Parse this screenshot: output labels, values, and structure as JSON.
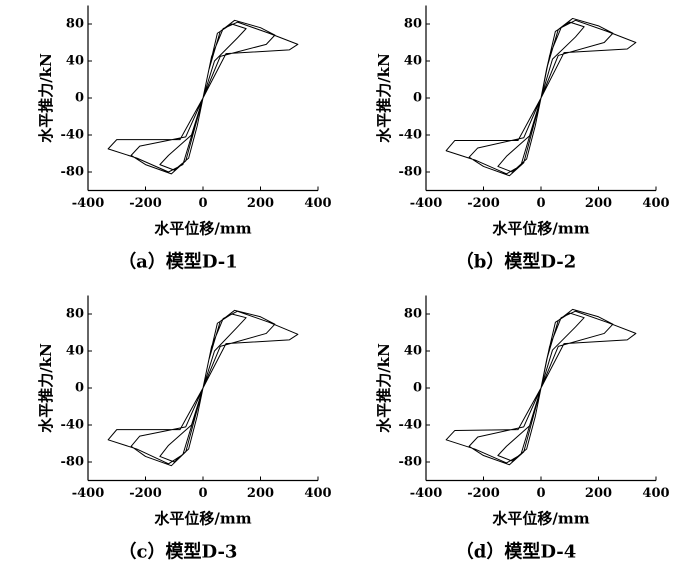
{
  "chart_data": [
    {
      "type": "line",
      "caption": "（a）模型D-1",
      "xlabel": "水平位移/mm",
      "ylabel": "水平推力/kN",
      "color": "#000000",
      "xlim": [
        -400,
        400
      ],
      "ylim": [
        -100,
        100
      ],
      "xticks": [
        -400,
        -200,
        0,
        200,
        400
      ],
      "yticks": [
        -80,
        -40,
        0,
        40,
        80
      ],
      "x": [
        0,
        20,
        50,
        100,
        150,
        120,
        40,
        0,
        -20,
        -50,
        -100,
        -150,
        -120,
        -40,
        0,
        20,
        60,
        110,
        200,
        250,
        220,
        60,
        0,
        -60,
        -110,
        -200,
        -250,
        -220,
        -60,
        0,
        30,
        70,
        120,
        230,
        330,
        300,
        80,
        0,
        -70,
        -120,
        -230,
        -330,
        -300,
        -80,
        0
      ],
      "values": [
        0,
        30,
        70,
        80,
        75,
        65,
        40,
        0,
        -30,
        -65,
        -78,
        -72,
        -62,
        -40,
        0,
        30,
        72,
        84,
        76,
        68,
        58,
        45,
        0,
        -68,
        -82,
        -72,
        -62,
        -52,
        -42,
        0,
        45,
        75,
        82,
        70,
        58,
        52,
        48,
        0,
        -72,
        -80,
        -65,
        -55,
        -45,
        -45,
        0
      ]
    },
    {
      "type": "line",
      "caption": "（b）模型D-2",
      "xlabel": "水平位移/mm",
      "ylabel": "水平推力/kN",
      "color": "#000000",
      "xlim": [
        -400,
        400
      ],
      "ylim": [
        -100,
        100
      ],
      "xticks": [
        -400,
        -200,
        0,
        200,
        400
      ],
      "yticks": [
        -80,
        -40,
        0,
        40,
        80
      ],
      "x": [
        0,
        20,
        50,
        100,
        150,
        120,
        40,
        0,
        -20,
        -50,
        -100,
        -150,
        -120,
        -40,
        0,
        20,
        60,
        110,
        200,
        250,
        220,
        60,
        0,
        -60,
        -110,
        -200,
        -250,
        -220,
        -60,
        0,
        30,
        70,
        120,
        230,
        330,
        300,
        80,
        0,
        -70,
        -120,
        -230,
        -330,
        -300,
        -80,
        0
      ],
      "values": [
        0,
        32,
        72,
        82,
        77,
        66,
        42,
        0,
        -30,
        -66,
        -80,
        -74,
        -63,
        -41,
        0,
        32,
        74,
        86,
        78,
        70,
        60,
        46,
        0,
        -70,
        -84,
        -74,
        -64,
        -54,
        -43,
        0,
        46,
        76,
        84,
        72,
        60,
        53,
        49,
        0,
        -73,
        -82,
        -67,
        -57,
        -46,
        -46,
        0
      ]
    },
    {
      "type": "line",
      "caption": "（c）模型D-3",
      "xlabel": "水平位移/mm",
      "ylabel": "水平推力/kN",
      "color": "#000000",
      "xlim": [
        -400,
        400
      ],
      "ylim": [
        -100,
        100
      ],
      "xticks": [
        -400,
        -200,
        0,
        200,
        400
      ],
      "yticks": [
        -80,
        -40,
        0,
        40,
        80
      ],
      "x": [
        0,
        20,
        50,
        100,
        150,
        120,
        40,
        0,
        -20,
        -50,
        -100,
        -150,
        -120,
        -40,
        0,
        20,
        60,
        110,
        200,
        250,
        220,
        60,
        0,
        -60,
        -110,
        -200,
        -250,
        -220,
        -60,
        0,
        30,
        70,
        120,
        230,
        330,
        300,
        80,
        0,
        -70,
        -120,
        -230,
        -330,
        -300,
        -80,
        0
      ],
      "values": [
        0,
        30,
        70,
        80,
        76,
        66,
        40,
        0,
        -30,
        -66,
        -80,
        -74,
        -62,
        -40,
        0,
        30,
        72,
        84,
        77,
        69,
        59,
        45,
        0,
        -69,
        -84,
        -74,
        -63,
        -52,
        -42,
        0,
        45,
        75,
        83,
        71,
        58,
        52,
        48,
        0,
        -72,
        -82,
        -66,
        -56,
        -45,
        -45,
        0
      ]
    },
    {
      "type": "line",
      "caption": "（d）模型D-4",
      "xlabel": "水平位移/mm",
      "ylabel": "水平推力/kN",
      "color": "#000000",
      "xlim": [
        -400,
        400
      ],
      "ylim": [
        -100,
        100
      ],
      "xticks": [
        -400,
        -200,
        0,
        200,
        400
      ],
      "yticks": [
        -80,
        -40,
        0,
        40,
        80
      ],
      "x": [
        0,
        20,
        50,
        100,
        150,
        120,
        40,
        0,
        -20,
        -50,
        -100,
        -150,
        -120,
        -40,
        0,
        20,
        60,
        110,
        200,
        250,
        220,
        60,
        0,
        -60,
        -110,
        -200,
        -250,
        -220,
        -60,
        0,
        30,
        70,
        120,
        230,
        330,
        300,
        80,
        0,
        -70,
        -120,
        -230,
        -330,
        -300,
        -80,
        0
      ],
      "values": [
        0,
        31,
        71,
        81,
        76,
        66,
        41,
        0,
        -31,
        -66,
        -79,
        -73,
        -63,
        -41,
        0,
        31,
        73,
        85,
        77,
        69,
        59,
        45,
        0,
        -69,
        -83,
        -73,
        -63,
        -53,
        -42,
        0,
        45,
        76,
        83,
        71,
        59,
        52,
        48,
        0,
        -72,
        -81,
        -66,
        -56,
        -46,
        -45,
        0
      ]
    }
  ]
}
